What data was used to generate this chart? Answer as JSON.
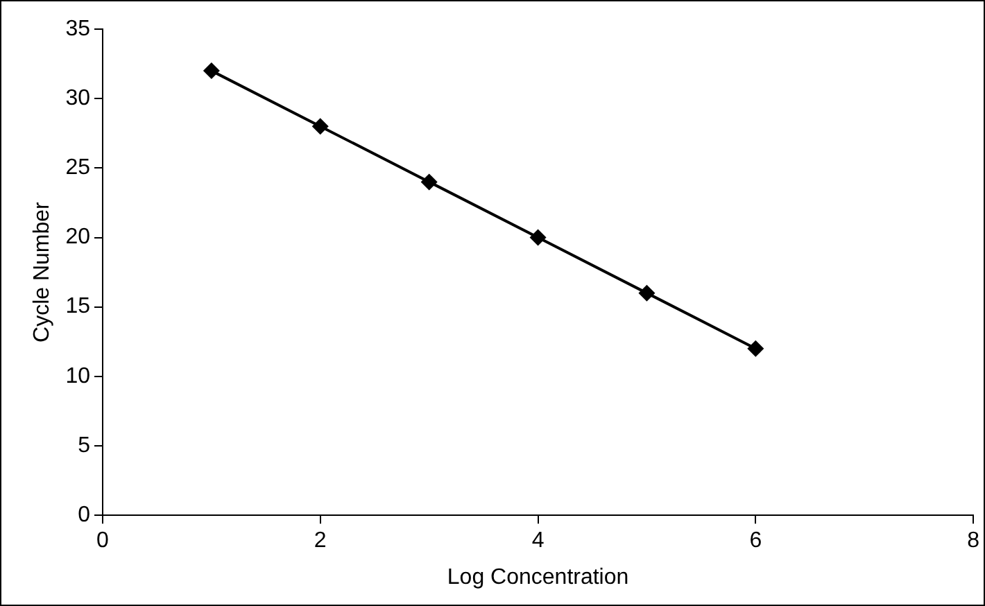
{
  "chart_data": {
    "type": "line",
    "xlabel": "Log Concentration",
    "ylabel": "Cycle Number",
    "x": [
      1,
      2,
      3,
      4,
      5,
      6
    ],
    "series": [
      {
        "color": "#000000",
        "values": [
          32,
          28,
          24,
          20,
          16,
          12
        ]
      }
    ],
    "xlim": [
      0,
      8
    ],
    "xticks": [
      0,
      2,
      4,
      6,
      8
    ],
    "ylim": [
      0,
      35
    ],
    "yticks": [
      0,
      5,
      10,
      15,
      20,
      25,
      30,
      35
    ],
    "grid": false,
    "legend": false,
    "marker": "diamond",
    "line_style": "solid"
  }
}
